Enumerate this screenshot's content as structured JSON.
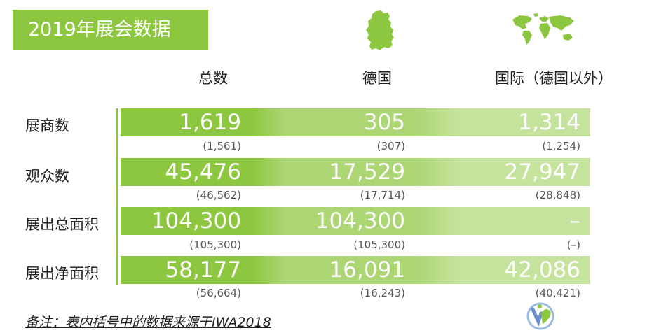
{
  "title": "2019年展会数据",
  "headers": [
    "总数",
    "德国",
    "国际（德国以外）"
  ],
  "rows": [
    {
      "label": "展商数",
      "total": "1,619",
      "total_prev": "(1,561)",
      "germany": "305",
      "germany_prev": "(307)",
      "intl": "1,314",
      "intl_prev": "(1,254)"
    },
    {
      "label": "观众数",
      "total": "45,476",
      "total_prev": "(46,562)",
      "germany": "17,529",
      "germany_prev": "(17,714)",
      "intl": "27,947",
      "intl_prev": "(28,848)"
    },
    {
      "label": "展出总面积",
      "total": "104,300",
      "total_prev": "(105,300)",
      "germany": "104,300",
      "germany_prev": "(105,300)",
      "intl": "–",
      "intl_prev": "(–)"
    },
    {
      "label": "展出净面积",
      "total": "58,177",
      "total_prev": "(56,664)",
      "germany": "16,091",
      "germany_prev": "(16,243)",
      "intl": "42,086",
      "intl_prev": "(40,421)"
    }
  ],
  "note": "备注：表内括号中的数据来源于IWA2018",
  "colors": {
    "green_dark": "#8dc63f",
    "green_mid": "#acd573",
    "green_light": "#c6e39d"
  },
  "icons": [
    "germany-map-icon",
    "world-map-icon",
    "logo-icon"
  ]
}
